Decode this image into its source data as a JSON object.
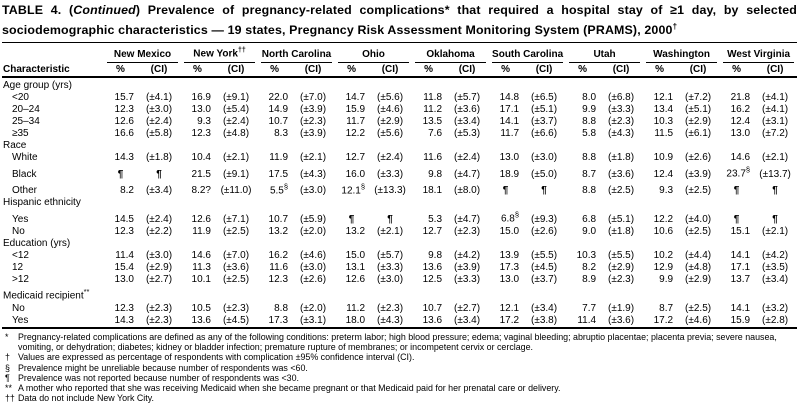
{
  "title": {
    "prefix": "TABLE 4. (",
    "continued": "Continued",
    "body": ") Prevalence of pregnancy-related complications* that required a hospital stay of ≥1 day, by selected sociodemographic characteristics — 19 states, Pregnancy Risk Assessment Monitoring System (PRAMS), 2000",
    "sup": "†"
  },
  "table": {
    "stub_header": "Characteristic",
    "subheaders": {
      "pct": "%",
      "ci": "(CI)"
    },
    "columns": [
      {
        "name": "New Mexico",
        "sup": ""
      },
      {
        "name": "New York",
        "sup": "††"
      },
      {
        "name": "North Carolina",
        "sup": ""
      },
      {
        "name": "Ohio",
        "sup": ""
      },
      {
        "name": "Oklahoma",
        "sup": ""
      },
      {
        "name": "South Carolina",
        "sup": ""
      },
      {
        "name": "Utah",
        "sup": ""
      },
      {
        "name": "Washington",
        "sup": ""
      },
      {
        "name": "West Virginia",
        "sup": ""
      }
    ],
    "sections": [
      {
        "label": "Age group (yrs)",
        "sup": "",
        "rows": [
          {
            "label": "<20",
            "cells": [
              [
                "15.7",
                "(±4.1)"
              ],
              [
                "16.9",
                "(±9.1)"
              ],
              [
                "22.0",
                "(±7.0)"
              ],
              [
                "14.7",
                "(±5.6)"
              ],
              [
                "11.8",
                "(±5.7)"
              ],
              [
                "14.8",
                "(±6.5)"
              ],
              [
                "8.0",
                "(±6.8)"
              ],
              [
                "12.1",
                "(±7.2)"
              ],
              [
                "21.8",
                "(±4.1)"
              ]
            ]
          },
          {
            "label": "20–24",
            "cells": [
              [
                "12.3",
                "(±3.0)"
              ],
              [
                "13.0",
                "(±5.4)"
              ],
              [
                "14.9",
                "(±3.9)"
              ],
              [
                "15.9",
                "(±4.6)"
              ],
              [
                "11.2",
                "(±3.6)"
              ],
              [
                "17.1",
                "(±5.1)"
              ],
              [
                "9.9",
                "(±3.3)"
              ],
              [
                "13.4",
                "(±5.1)"
              ],
              [
                "16.2",
                "(±4.1)"
              ]
            ]
          },
          {
            "label": "25–34",
            "cells": [
              [
                "12.6",
                "(±2.4)"
              ],
              [
                "9.3",
                "(±2.4)"
              ],
              [
                "10.7",
                "(±2.3)"
              ],
              [
                "11.7",
                "(±2.9)"
              ],
              [
                "13.5",
                "(±3.4)"
              ],
              [
                "14.1",
                "(±3.7)"
              ],
              [
                "8.8",
                "(±2.3)"
              ],
              [
                "10.3",
                "(±2.9)"
              ],
              [
                "12.4",
                "(±3.1)"
              ]
            ]
          },
          {
            "label": "≥35",
            "cells": [
              [
                "16.6",
                "(±5.8)"
              ],
              [
                "12.3",
                "(±4.8)"
              ],
              [
                "8.3",
                "(±3.9)"
              ],
              [
                "12.2",
                "(±5.6)"
              ],
              [
                "7.6",
                "(±5.3)"
              ],
              [
                "11.7",
                "(±6.6)"
              ],
              [
                "5.8",
                "(±4.3)"
              ],
              [
                "11.5",
                "(±6.1)"
              ],
              [
                "13.0",
                "(±7.2)"
              ]
            ]
          }
        ]
      },
      {
        "label": "Race",
        "sup": "",
        "rows": [
          {
            "label": "White",
            "cells": [
              [
                "14.3",
                "(±1.8)"
              ],
              [
                "10.4",
                "(±2.1)"
              ],
              [
                "11.9",
                "(±2.1)"
              ],
              [
                "12.7",
                "(±2.4)"
              ],
              [
                "11.6",
                "(±2.4)"
              ],
              [
                "13.0",
                "(±3.0)"
              ],
              [
                "8.8",
                "(±1.8)"
              ],
              [
                "10.9",
                "(±2.6)"
              ],
              [
                "14.6",
                "(±2.1)"
              ]
            ]
          },
          {
            "label": "Black",
            "cells": [
              [
                "¶",
                "¶"
              ],
              [
                "21.5",
                "(±9.1)"
              ],
              [
                "17.5",
                "(±4.3)"
              ],
              [
                "16.0",
                "(±3.3)"
              ],
              [
                "9.8",
                "(±4.7)"
              ],
              [
                "18.9",
                "(±5.0)"
              ],
              [
                "8.7",
                "(±3.6)"
              ],
              [
                "12.4",
                "(±3.9)"
              ],
              [
                "23.7§",
                "(±13.7)"
              ]
            ]
          },
          {
            "label": "Other",
            "cells": [
              [
                "8.2",
                "(±3.4)"
              ],
              [
                "8.2?",
                "(±11.0)"
              ],
              [
                "5.5§",
                "(±3.0)"
              ],
              [
                "12.1§",
                "(±13.3)"
              ],
              [
                "18.1",
                "(±8.0)"
              ],
              [
                "¶",
                "¶"
              ],
              [
                "8.8",
                "(±2.5)"
              ],
              [
                "9.3",
                "(±2.5)"
              ],
              [
                "¶",
                "¶"
              ]
            ]
          }
        ]
      },
      {
        "label": "Hispanic ethnicity",
        "sup": "",
        "rows": [
          {
            "label": "Yes",
            "cells": [
              [
                "14.5",
                "(±2.4)"
              ],
              [
                "12.6",
                "(±7.1)"
              ],
              [
                "10.7",
                "(±5.9)"
              ],
              [
                "¶",
                "¶"
              ],
              [
                "5.3",
                "(±4.7)"
              ],
              [
                "6.8§",
                "(±9.3)"
              ],
              [
                "6.8",
                "(±5.1)"
              ],
              [
                "12.2",
                "(±4.0)"
              ],
              [
                "¶",
                "¶"
              ]
            ]
          },
          {
            "label": "No",
            "cells": [
              [
                "12.3",
                "(±2.2)"
              ],
              [
                "11.9",
                "(±2.5)"
              ],
              [
                "13.2",
                "(±2.0)"
              ],
              [
                "13.2",
                "(±2.1)"
              ],
              [
                "12.7",
                "(±2.3)"
              ],
              [
                "15.0",
                "(±2.6)"
              ],
              [
                "9.0",
                "(±1.8)"
              ],
              [
                "10.6",
                "(±2.5)"
              ],
              [
                "15.1",
                "(±2.1)"
              ]
            ]
          }
        ]
      },
      {
        "label": "Education (yrs)",
        "sup": "",
        "rows": [
          {
            "label": "<12",
            "cells": [
              [
                "11.4",
                "(±3.0)"
              ],
              [
                "14.6",
                "(±7.0)"
              ],
              [
                "16.2",
                "(±4.6)"
              ],
              [
                "15.0",
                "(±5.7)"
              ],
              [
                "9.8",
                "(±4.2)"
              ],
              [
                "13.9",
                "(±5.5)"
              ],
              [
                "10.3",
                "(±5.5)"
              ],
              [
                "10.2",
                "(±4.4)"
              ],
              [
                "14.1",
                "(±4.2)"
              ]
            ]
          },
          {
            "label": "12",
            "cells": [
              [
                "15.4",
                "(±2.9)"
              ],
              [
                "11.3",
                "(±3.6)"
              ],
              [
                "11.6",
                "(±3.0)"
              ],
              [
                "13.1",
                "(±3.3)"
              ],
              [
                "13.6",
                "(±3.9)"
              ],
              [
                "17.3",
                "(±4.5)"
              ],
              [
                "8.2",
                "(±2.9)"
              ],
              [
                "12.9",
                "(±4.8)"
              ],
              [
                "17.1",
                "(±3.5)"
              ]
            ]
          },
          {
            "label": ">12",
            "cells": [
              [
                "13.0",
                "(±2.7)"
              ],
              [
                "10.1",
                "(±2.5)"
              ],
              [
                "12.3",
                "(±2.6)"
              ],
              [
                "12.6",
                "(±3.0)"
              ],
              [
                "12.5",
                "(±3.3)"
              ],
              [
                "13.0",
                "(±3.7)"
              ],
              [
                "8.9",
                "(±2.3)"
              ],
              [
                "9.9",
                "(±2.9)"
              ],
              [
                "13.7",
                "(±3.4)"
              ]
            ]
          }
        ]
      },
      {
        "label": "Medicaid recipient",
        "sup": "**",
        "rows": [
          {
            "label": "No",
            "cells": [
              [
                "12.3",
                "(±2.3)"
              ],
              [
                "10.5",
                "(±2.3)"
              ],
              [
                "8.8",
                "(±2.0)"
              ],
              [
                "11.2",
                "(±2.3)"
              ],
              [
                "10.7",
                "(±2.7)"
              ],
              [
                "12.1",
                "(±3.4)"
              ],
              [
                "7.7",
                "(±1.9)"
              ],
              [
                "8.7",
                "(±2.5)"
              ],
              [
                "14.1",
                "(±3.2)"
              ]
            ]
          },
          {
            "label": "Yes",
            "cells": [
              [
                "14.3",
                "(±2.3)"
              ],
              [
                "13.6",
                "(±4.5)"
              ],
              [
                "17.3",
                "(±3.1)"
              ],
              [
                "18.0",
                "(±4.3)"
              ],
              [
                "13.6",
                "(±3.4)"
              ],
              [
                "17.2",
                "(±3.8)"
              ],
              [
                "11.4",
                "(±3.6)"
              ],
              [
                "17.2",
                "(±4.6)"
              ],
              [
                "15.9",
                "(±2.8)"
              ]
            ]
          }
        ]
      }
    ]
  },
  "footnotes": [
    {
      "symbol": "*",
      "text": "Pregnancy-related complications are defined as any of the following conditions: preterm labor; high blood pressure; edema; vaginal bleeding; abruptio placentae; placenta previa; severe nausea, vomiting, or dehydration; diabetes; kidney or bladder infection; premature rupture of membranes; or incompetent cervix or cerclage."
    },
    {
      "symbol": "†",
      "text": "Values are expressed as percentage of respondents with complication ±95% confidence interval (CI)."
    },
    {
      "symbol": "§",
      "text": "Prevalence might be unreliable because number of respondents was <60."
    },
    {
      "symbol": "¶",
      "text": "Prevalence was not reported because number of respondents was <30."
    },
    {
      "symbol": "**",
      "text": "A mother who reported that she was receiving Medicaid when she became pregnant or that Medicaid paid for her prenatal care or delivery."
    },
    {
      "symbol": "††",
      "text": "Data do not include New York City."
    }
  ]
}
